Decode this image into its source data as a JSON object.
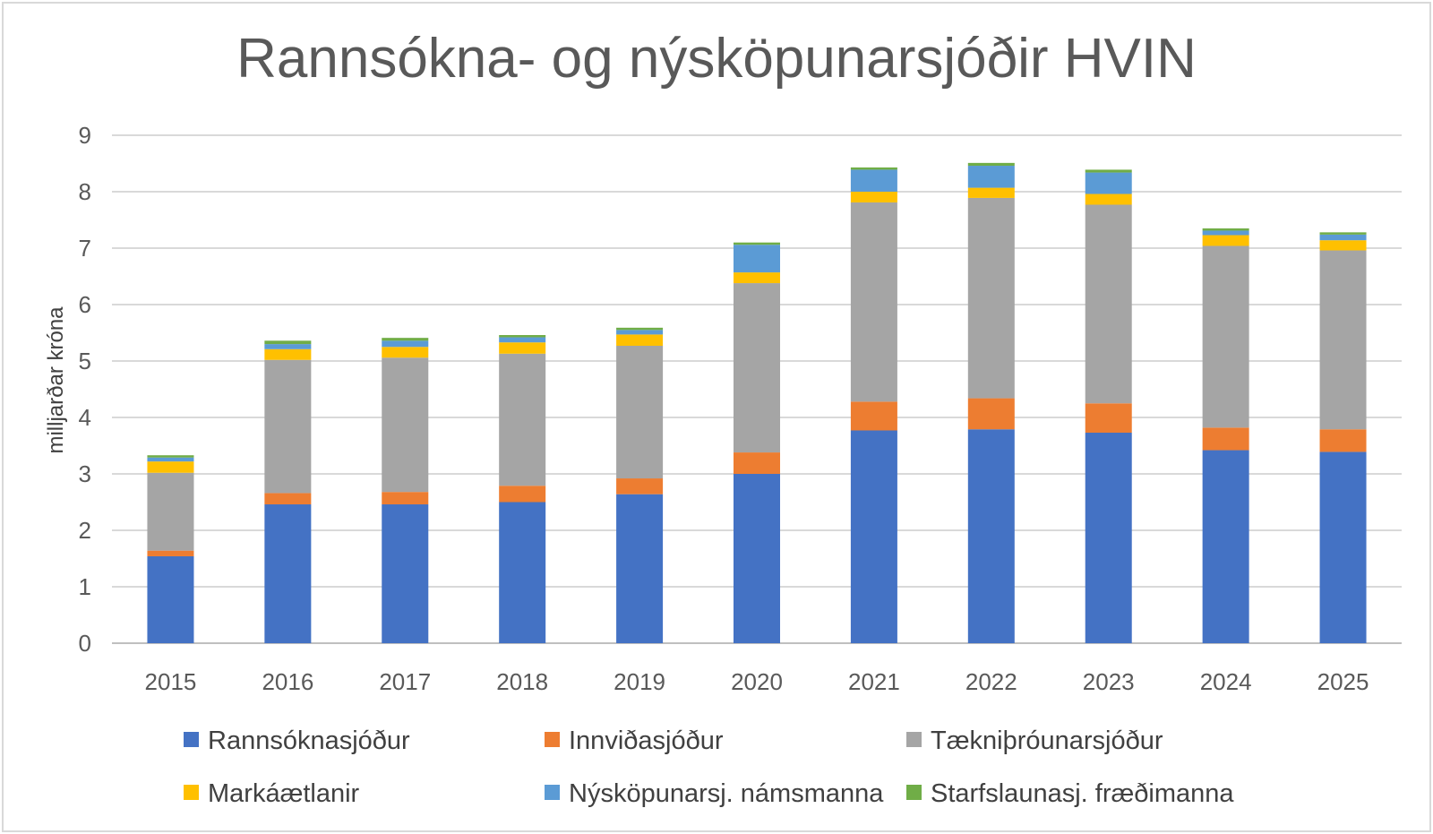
{
  "chart_data": {
    "type": "bar",
    "stacked": true,
    "title": "Rannsókna- og nýsköpunarsjóðir HVIN",
    "ylabel": "milljarðar króna",
    "ylim": [
      0,
      9
    ],
    "yticks": [
      "0",
      "1",
      "2",
      "3",
      "4",
      "5",
      "6",
      "7",
      "8",
      "9"
    ],
    "grid": true,
    "legend_position": "bottom",
    "categories": [
      "2015",
      "2016",
      "2017",
      "2018",
      "2019",
      "2020",
      "2021",
      "2022",
      "2023",
      "2024",
      "2025"
    ],
    "series": [
      {
        "name": "Rannsóknasjóður",
        "color": "#4472c4",
        "values": [
          1.54,
          2.46,
          2.46,
          2.5,
          2.64,
          3.0,
          3.77,
          3.79,
          3.73,
          3.42,
          3.39
        ]
      },
      {
        "name": "Innviðasjóður",
        "color": "#ed7d31",
        "values": [
          0.1,
          0.2,
          0.22,
          0.29,
          0.28,
          0.38,
          0.51,
          0.55,
          0.52,
          0.4,
          0.4
        ]
      },
      {
        "name": "Tækniþróunarsjóður",
        "color": "#a5a5a5",
        "values": [
          1.38,
          2.36,
          2.38,
          2.34,
          2.35,
          3.0,
          3.53,
          3.55,
          3.52,
          3.22,
          3.17
        ]
      },
      {
        "name": "Markáætlanir",
        "color": "#ffc000",
        "values": [
          0.2,
          0.19,
          0.19,
          0.2,
          0.2,
          0.19,
          0.19,
          0.18,
          0.19,
          0.19,
          0.18
        ]
      },
      {
        "name": "Nýsköpunarsj. námsmanna",
        "color": "#5b9bd5",
        "values": [
          0.07,
          0.09,
          0.11,
          0.09,
          0.08,
          0.49,
          0.39,
          0.39,
          0.38,
          0.08,
          0.1
        ]
      },
      {
        "name": "Starfslaunasj. fræðimanna",
        "color": "#70ad47",
        "values": [
          0.04,
          0.06,
          0.05,
          0.04,
          0.04,
          0.04,
          0.04,
          0.05,
          0.05,
          0.04,
          0.04
        ]
      }
    ]
  }
}
